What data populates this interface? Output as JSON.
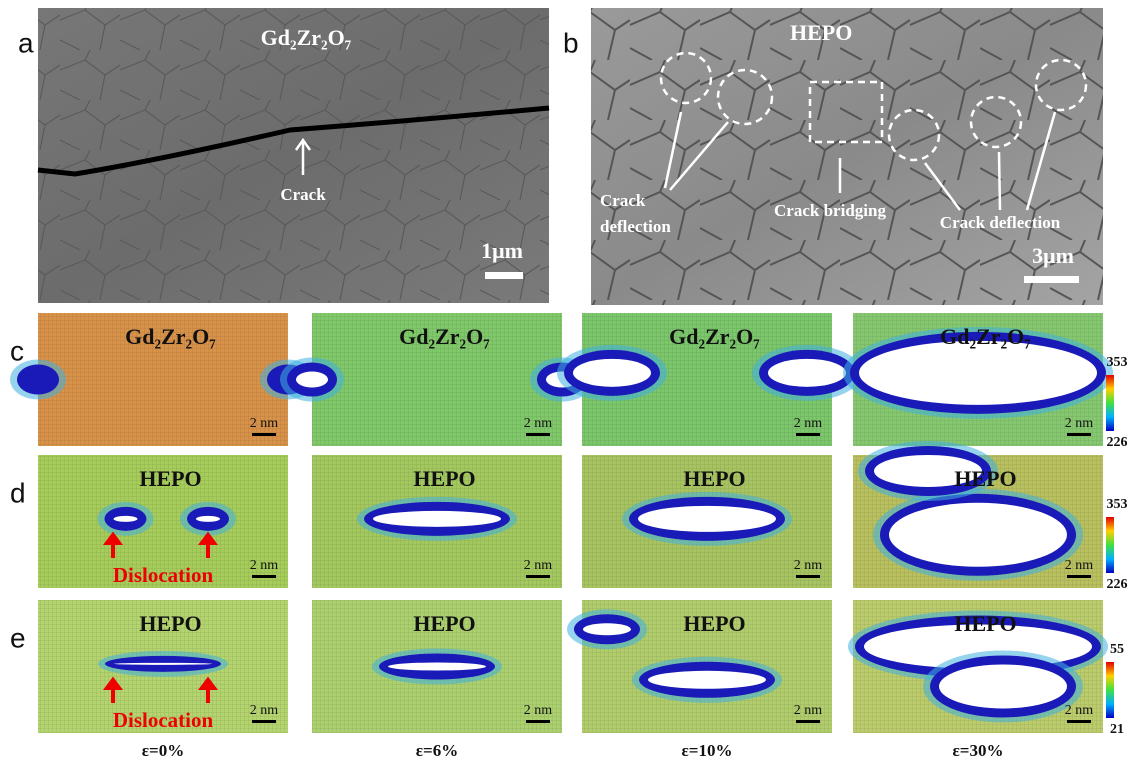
{
  "panels": {
    "a": {
      "label": "a",
      "title": "Gd₂Zr₂O₇",
      "annotation": "Crack",
      "scale_bar": "1μm"
    },
    "b": {
      "label": "b",
      "title": "HEPO",
      "annotations": [
        "Crack",
        "deflection",
        "Crack bridging",
        "Crack deflection"
      ],
      "scale_bar": "3μm"
    }
  },
  "rows": [
    {
      "label": "c",
      "colorbar": {
        "max": 353,
        "min": 226
      },
      "cells": [
        {
          "title": "Gd₂Zr₂O₇",
          "scale_bar": "2 nm"
        },
        {
          "title": "Gd₂Zr₂O₇",
          "scale_bar": "2 nm"
        },
        {
          "title": "Gd₂Zr₂O₇",
          "scale_bar": "2 nm"
        },
        {
          "title": "Gd₂Zr₂O₇",
          "scale_bar": "2 nm"
        }
      ]
    },
    {
      "label": "d",
      "colorbar": {
        "max": 353,
        "min": 226
      },
      "cells": [
        {
          "title": "HEPO",
          "annotation": "Dislocation",
          "scale_bar": "2 nm"
        },
        {
          "title": "HEPO",
          "scale_bar": "2 nm"
        },
        {
          "title": "HEPO",
          "scale_bar": "2 nm"
        },
        {
          "title": "HEPO",
          "scale_bar": "2 nm"
        }
      ]
    },
    {
      "label": "e",
      "colorbar": {
        "max": 55,
        "min": 21
      },
      "cells": [
        {
          "title": "HEPO",
          "annotation": "Dislocation",
          "scale_bar": "2 nm"
        },
        {
          "title": "HEPO",
          "scale_bar": "2 nm"
        },
        {
          "title": "HEPO",
          "scale_bar": "2 nm"
        },
        {
          "title": "HEPO",
          "scale_bar": "2 nm"
        }
      ]
    }
  ],
  "strains": [
    "ε=0%",
    "ε=6%",
    "ε=10%",
    "ε=30%"
  ]
}
